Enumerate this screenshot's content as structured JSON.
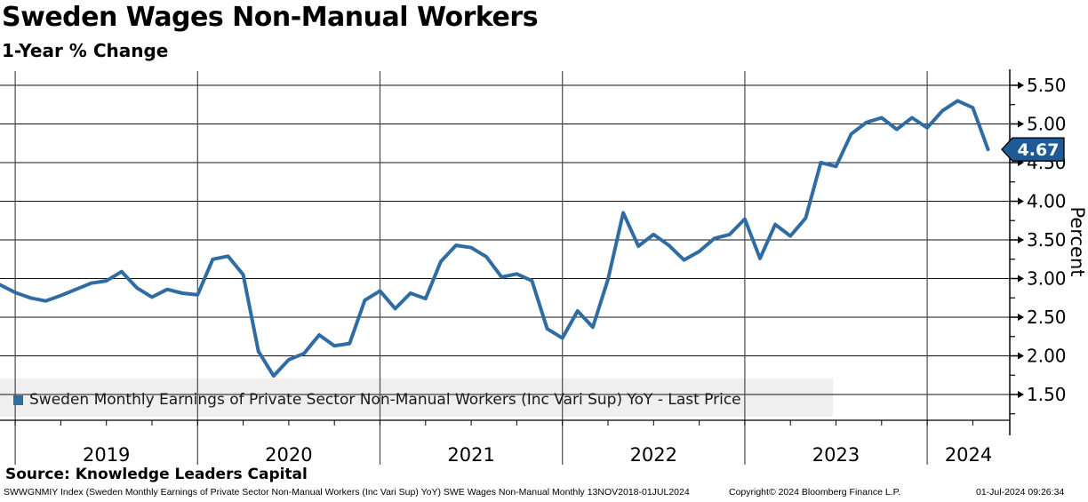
{
  "header": {
    "title": "Sweden Wages Non-Manual Workers",
    "subtitle": "1-Year % Change"
  },
  "legend": {
    "label": "Sweden Monthly Earnings of Private Sector Non-Manual Workers (Inc Vari Sup) YoY - Last Price"
  },
  "last_price": "4.67",
  "source_line": "Source: Knowledge Leaders Capital",
  "footer": {
    "left": "SWWGNMIY Index (Sweden Monthly Earnings of Private Sector Non-Manual Workers (Inc Vari Sup) YoY) SWE Wages Non-Manual  Monthly 13NOV2018-01JUL2024",
    "copyright": "Copyright© 2024 Bloomberg Finance L.P.",
    "datetime": "01-Jul-2024 09:26:34"
  },
  "colors": {
    "line": "#2e6ca3",
    "badge": "#1d5a96",
    "legend_bg": "#efefef",
    "grid_h": "#111111",
    "grid_v": "#4a4a4a",
    "axis": "#000000"
  },
  "chart_data": {
    "type": "line",
    "title": "Sweden Wages Non-Manual Workers",
    "subtitle": "1-Year % Change",
    "ylabel": "Percent",
    "ylim": [
      1.1,
      5.7
    ],
    "yticks": [
      5.5,
      5.0,
      4.5,
      4.0,
      3.5,
      3.0,
      2.5,
      2.0,
      1.5
    ],
    "grid": true,
    "legend_position": "bottom-left",
    "x_years": [
      "2019",
      "2020",
      "2021",
      "2022",
      "2023",
      "2024"
    ],
    "series_name": "Sweden Monthly Earnings of Private Sector Non-Manual Workers (Inc Vari Sup) YoY - Last Price",
    "last_price": 4.67,
    "x": [
      "Nov 2018",
      "Dec 2018",
      "Jan 2019",
      "Feb 2019",
      "Mar 2019",
      "Apr 2019",
      "May 2019",
      "Jun 2019",
      "Jul 2019",
      "Aug 2019",
      "Sep 2019",
      "Oct 2019",
      "Nov 2019",
      "Dec 2019",
      "Jan 2020",
      "Feb 2020",
      "Mar 2020",
      "Apr 2020",
      "May 2020",
      "Jun 2020",
      "Jul 2020",
      "Aug 2020",
      "Sep 2020",
      "Oct 2020",
      "Nov 2020",
      "Dec 2020",
      "Jan 2021",
      "Feb 2021",
      "Mar 2021",
      "Apr 2021",
      "May 2021",
      "Jun 2021",
      "Jul 2021",
      "Aug 2021",
      "Sep 2021",
      "Oct 2021",
      "Nov 2021",
      "Dec 2021",
      "Jan 2022",
      "Feb 2022",
      "Mar 2022",
      "Apr 2022",
      "May 2022",
      "Jun 2022",
      "Jul 2022",
      "Aug 2022",
      "Sep 2022",
      "Oct 2022",
      "Nov 2022",
      "Dec 2022",
      "Jan 2023",
      "Feb 2023",
      "Mar 2023",
      "Apr 2023",
      "May 2023",
      "Jun 2023",
      "Jul 2023",
      "Aug 2023",
      "Sep 2023",
      "Oct 2023",
      "Nov 2023",
      "Dec 2023",
      "Jan 2024",
      "Feb 2024",
      "Mar 2024",
      "Apr 2024"
    ],
    "values": [
      2.92,
      2.82,
      2.75,
      2.71,
      2.78,
      2.86,
      2.94,
      2.97,
      3.09,
      2.88,
      2.76,
      2.86,
      2.81,
      2.79,
      3.25,
      3.29,
      3.05,
      2.06,
      1.74,
      1.95,
      2.03,
      2.27,
      2.13,
      2.16,
      2.72,
      2.84,
      2.61,
      2.81,
      2.74,
      3.22,
      3.43,
      3.4,
      3.28,
      3.02,
      3.06,
      2.97,
      2.35,
      2.23,
      2.58,
      2.37,
      2.99,
      3.85,
      3.42,
      3.57,
      3.43,
      3.24,
      3.35,
      3.52,
      3.57,
      3.77,
      3.26,
      3.7,
      3.55,
      3.78,
      4.5,
      4.45,
      4.87,
      5.02,
      5.08,
      4.93,
      5.08,
      4.95,
      5.17,
      5.3,
      5.21,
      4.67
    ]
  }
}
